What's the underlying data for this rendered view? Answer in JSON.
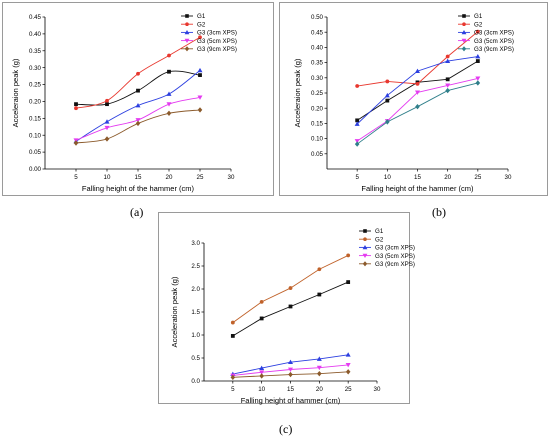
{
  "captions": [
    "(a)",
    "(b)",
    "(c)"
  ],
  "colors": {
    "G1": "#111111",
    "G2": "#e8382f",
    "G2c": "#c0622a",
    "G3_3cm": "#2c3fe0",
    "G3_5cm": "#e43bf0",
    "G3_9cm": "#8b5a2b",
    "G3_9cm_b": "#2f7f8a"
  },
  "chart_data": [
    {
      "type": "line",
      "xlabel": "Falling height of the hammer (cm)",
      "ylabel": "Acceleraion peak (g)",
      "xlim": [
        0,
        30
      ],
      "ylim": [
        0,
        0.45
      ],
      "xticks": [
        5,
        10,
        15,
        20,
        25,
        30
      ],
      "yticks": [
        0.0,
        0.05,
        0.1,
        0.15,
        0.2,
        0.25,
        0.3,
        0.35,
        0.4,
        0.45
      ],
      "ytick_labels": [
        "0.00",
        "0.05",
        "0.10",
        "0.15",
        "0.20",
        "0.25",
        "0.30",
        "0.35",
        "0.40",
        "0.45"
      ],
      "legend_position": "top-right",
      "x": [
        5,
        10,
        15,
        20,
        25
      ],
      "series": [
        {
          "name": "G1",
          "values": [
            0.192,
            0.192,
            0.232,
            0.288,
            0.278
          ],
          "marker": "square",
          "color": "#111111"
        },
        {
          "name": "G2",
          "values": [
            0.18,
            0.202,
            0.282,
            0.336,
            0.39
          ],
          "marker": "circle",
          "color": "#e8382f"
        },
        {
          "name": "G3 (3cm XPS)",
          "values": [
            0.082,
            0.14,
            0.188,
            0.222,
            0.292
          ],
          "marker": "triangle-up",
          "color": "#2c3fe0"
        },
        {
          "name": "G3 (5cm XPS)",
          "values": [
            0.085,
            0.122,
            0.145,
            0.192,
            0.212
          ],
          "marker": "triangle-down",
          "color": "#e43bf0"
        },
        {
          "name": "G3 (9cm XPS)",
          "values": [
            0.077,
            0.089,
            0.135,
            0.165,
            0.175
          ],
          "marker": "diamond",
          "color": "#8b5a2b"
        }
      ]
    },
    {
      "type": "line",
      "xlabel": "Falling height of the hammer (cm)",
      "ylabel": "Acceleraion peak (g)",
      "xlim": [
        0,
        30
      ],
      "ylim": [
        0,
        0.5
      ],
      "xticks": [
        5,
        10,
        15,
        20,
        25,
        30
      ],
      "yticks": [
        0.05,
        0.1,
        0.15,
        0.2,
        0.25,
        0.3,
        0.35,
        0.4,
        0.45,
        0.5
      ],
      "ytick_labels": [
        "0.05",
        "0.10",
        "0.15",
        "0.20",
        "0.25",
        "0.30",
        "0.35",
        "0.40",
        "0.45",
        "0.50"
      ],
      "legend_position": "top-right",
      "x": [
        5,
        10,
        15,
        20,
        25
      ],
      "series": [
        {
          "name": "G1",
          "values": [
            0.16,
            0.225,
            0.285,
            0.295,
            0.355
          ],
          "marker": "square",
          "color": "#111111"
        },
        {
          "name": "G2",
          "values": [
            0.273,
            0.288,
            0.28,
            0.37,
            0.452
          ],
          "marker": "circle",
          "color": "#e8382f"
        },
        {
          "name": "G3 (3cm XPS)",
          "values": [
            0.148,
            0.242,
            0.322,
            0.355,
            0.37
          ],
          "marker": "triangle-up",
          "color": "#2c3fe0"
        },
        {
          "name": "G3 (5cm XPS)",
          "values": [
            0.092,
            0.158,
            0.252,
            0.275,
            0.298
          ],
          "marker": "triangle-down",
          "color": "#e43bf0"
        },
        {
          "name": "G3 (9cm XPS)",
          "values": [
            0.082,
            0.155,
            0.205,
            0.258,
            0.283
          ],
          "marker": "diamond",
          "color": "#2f7f8a"
        }
      ]
    },
    {
      "type": "line",
      "xlabel": "Falling height of hammer (cm)",
      "ylabel": "Acceleration peak (g)",
      "xlim": [
        0,
        30
      ],
      "ylim": [
        0,
        3.0
      ],
      "xticks": [
        5,
        10,
        15,
        20,
        25,
        30
      ],
      "yticks": [
        0.0,
        0.5,
        1.0,
        1.5,
        2.0,
        2.5,
        3.0
      ],
      "ytick_labels": [
        "0.0",
        "0.5",
        "1.0",
        "1.5",
        "2.0",
        "2.5",
        "3.0"
      ],
      "legend_position": "top-right",
      "x": [
        5,
        10,
        15,
        20,
        25
      ],
      "series": [
        {
          "name": "G1",
          "values": [
            0.98,
            1.36,
            1.62,
            1.88,
            2.15
          ],
          "marker": "square",
          "color": "#111111"
        },
        {
          "name": "G2",
          "values": [
            1.27,
            1.72,
            2.02,
            2.43,
            2.73
          ],
          "marker": "circle",
          "color": "#c0622a"
        },
        {
          "name": "G3 (3cm XPS)",
          "values": [
            0.15,
            0.28,
            0.41,
            0.48,
            0.57
          ],
          "marker": "triangle-up",
          "color": "#2c3fe0"
        },
        {
          "name": "G3 (5cm XPS)",
          "values": [
            0.12,
            0.19,
            0.25,
            0.29,
            0.35
          ],
          "marker": "triangle-down",
          "color": "#e43bf0"
        },
        {
          "name": "G3 (9cm XPS)",
          "values": [
            0.08,
            0.11,
            0.14,
            0.16,
            0.2
          ],
          "marker": "diamond",
          "color": "#8b5a2b"
        }
      ]
    }
  ]
}
